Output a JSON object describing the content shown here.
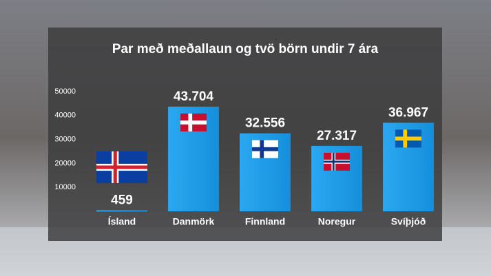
{
  "chart_data": {
    "type": "bar",
    "title": "Par með meðallaun og tvö börn undir 7 ára",
    "categories": [
      "Ísland",
      "Danmörk",
      "Finnland",
      "Noregur",
      "Svíþjóð"
    ],
    "values": [
      459,
      43704,
      32556,
      27317,
      36967
    ],
    "value_labels": [
      "459",
      "43.704",
      "32.556",
      "27.317",
      "36.967"
    ],
    "color": "#1b9ee8",
    "ylim": [
      0,
      50000
    ],
    "yticks": [
      10000,
      20000,
      30000,
      40000,
      50000
    ],
    "grid": false
  }
}
